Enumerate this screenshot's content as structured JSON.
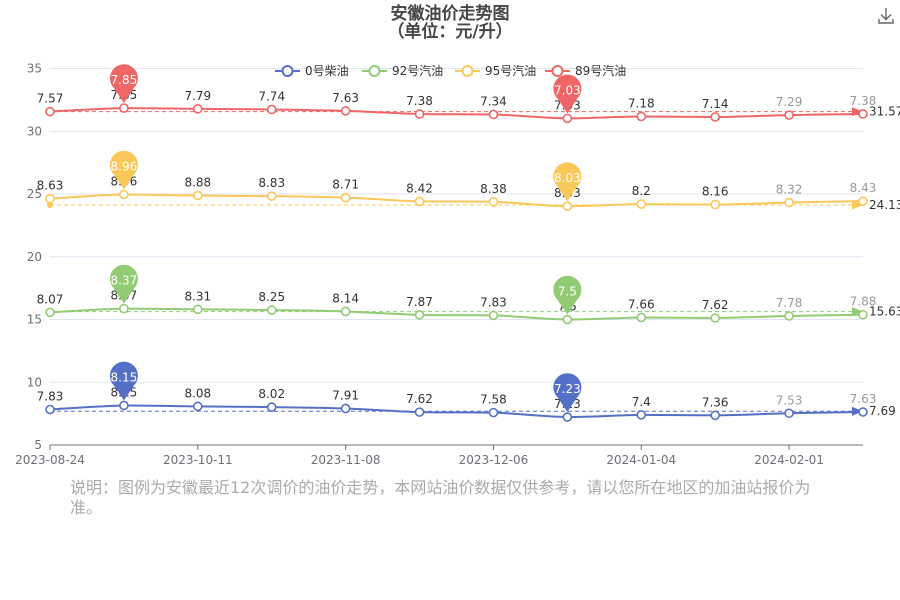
{
  "header": {
    "title": "安徽油价走势图",
    "subtitle": "（单位：元/升）"
  },
  "toolbar": {
    "download_icon": "download-icon"
  },
  "note": "说明：图例为安徽最近12次调价的油价走势，本网站油价数据仅供参考，请以您所在地区的加油站报价为准。",
  "chart_data": {
    "type": "line",
    "title": "安徽油价走势图",
    "subtitle": "（单位：元/升）",
    "x_ticks": [
      "2023-08-24",
      "2023-10-11",
      "2023-11-08",
      "2023-12-06",
      "2024-01-04",
      "2024-02-01"
    ],
    "y_ticks": [
      5,
      10,
      15,
      20,
      25,
      30,
      35
    ],
    "ylim": [
      5,
      36
    ],
    "grid": true,
    "legend_position": "top",
    "series": [
      {
        "name": "0号柴油",
        "color": "#5470c6",
        "offset": 0,
        "values": [
          7.83,
          8.15,
          8.08,
          8.02,
          7.91,
          7.62,
          7.58,
          7.23,
          7.4,
          7.36,
          7.53,
          7.63
        ],
        "max": "8.15",
        "min": "7.23",
        "average": "7.69"
      },
      {
        "name": "92号汽油",
        "color": "#91cc75",
        "offset": 7.5,
        "values": [
          8.07,
          8.37,
          8.31,
          8.25,
          8.14,
          7.87,
          7.83,
          7.5,
          7.66,
          7.62,
          7.78,
          7.88
        ],
        "max": "8.37",
        "min": "7.5",
        "average": "15.63"
      },
      {
        "name": "95号汽油",
        "color": "#fac858",
        "offset": 16,
        "values": [
          8.63,
          8.96,
          8.88,
          8.83,
          8.71,
          8.42,
          8.38,
          8.03,
          8.2,
          8.16,
          8.32,
          8.43
        ],
        "max": "8.96",
        "min": "8.03",
        "average": "24.13"
      },
      {
        "name": "89号汽油",
        "color": "#ee6666",
        "offset": 24,
        "values": [
          7.57,
          7.85,
          7.79,
          7.74,
          7.63,
          7.38,
          7.34,
          7.03,
          7.18,
          7.14,
          7.29,
          7.38
        ],
        "max": "7.85",
        "min": "7.03",
        "average": "31.57"
      }
    ]
  }
}
